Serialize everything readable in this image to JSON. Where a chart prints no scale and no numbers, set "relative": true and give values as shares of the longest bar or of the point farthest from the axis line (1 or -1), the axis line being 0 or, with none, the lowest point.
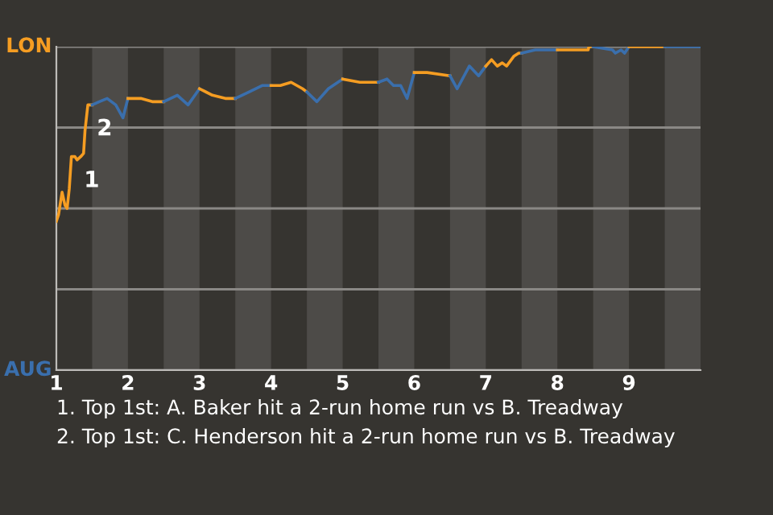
{
  "chart_data": {
    "type": "line",
    "relative": true,
    "xlim": [
      1,
      10
    ],
    "xticks": [
      1,
      2,
      3,
      4,
      5,
      6,
      7,
      8,
      9
    ],
    "grid": "y",
    "series": [
      {
        "color": "#f59d22",
        "x": [
          1,
          1.03,
          1.08,
          1.12,
          1.15,
          1.18,
          1.21,
          1.26,
          1.29,
          1.34,
          1.38,
          1.4,
          1.44,
          1.5
        ],
        "values": [
          0.46,
          0.48,
          0.55,
          0.51,
          0.5,
          0.56,
          0.66,
          0.66,
          0.65,
          0.66,
          0.67,
          0.74,
          0.82,
          0.82
        ]
      },
      {
        "color": "#3a6fad",
        "x": [
          1.5,
          1.6,
          1.71,
          1.83,
          1.93,
          2
        ],
        "values": [
          0.82,
          0.83,
          0.84,
          0.82,
          0.78,
          0.84
        ]
      },
      {
        "color": "#f59d22",
        "x": [
          2,
          2.18,
          2.34,
          2.5
        ],
        "values": [
          0.84,
          0.84,
          0.83,
          0.83
        ]
      },
      {
        "color": "#3a6fad",
        "x": [
          2.5,
          2.69,
          2.84,
          3
        ],
        "values": [
          0.83,
          0.85,
          0.82,
          0.87
        ]
      },
      {
        "color": "#f59d22",
        "x": [
          3,
          3.18,
          3.36,
          3.5
        ],
        "values": [
          0.87,
          0.85,
          0.84,
          0.84
        ]
      },
      {
        "color": "#3a6fad",
        "x": [
          3.5,
          3.69,
          3.88,
          4
        ],
        "values": [
          0.84,
          0.86,
          0.88,
          0.88
        ]
      },
      {
        "color": "#f59d22",
        "x": [
          4,
          4.13,
          4.28,
          4.44,
          4.5
        ],
        "values": [
          0.88,
          0.88,
          0.89,
          0.87,
          0.86
        ]
      },
      {
        "color": "#3a6fad",
        "x": [
          4.5,
          4.64,
          4.8,
          5
        ],
        "values": [
          0.86,
          0.83,
          0.87,
          0.9
        ]
      },
      {
        "color": "#f59d22",
        "x": [
          5,
          5.24,
          5.5
        ],
        "values": [
          0.9,
          0.89,
          0.89
        ]
      },
      {
        "color": "#3a6fad",
        "x": [
          5.5,
          5.62,
          5.71,
          5.81,
          5.9,
          6
        ],
        "values": [
          0.89,
          0.9,
          0.88,
          0.88,
          0.84,
          0.92
        ]
      },
      {
        "color": "#f59d22",
        "x": [
          6,
          6.18,
          6.5
        ],
        "values": [
          0.92,
          0.92,
          0.91
        ]
      },
      {
        "color": "#3a6fad",
        "x": [
          6.5,
          6.6,
          6.77,
          6.9,
          7
        ],
        "values": [
          0.91,
          0.87,
          0.94,
          0.91,
          0.94
        ]
      },
      {
        "color": "#f59d22",
        "x": [
          7,
          7.08,
          7.16,
          7.23,
          7.29,
          7.39,
          7.46,
          7.5
        ],
        "values": [
          0.94,
          0.96,
          0.94,
          0.95,
          0.94,
          0.97,
          0.98,
          0.98
        ]
      },
      {
        "color": "#3a6fad",
        "x": [
          7.5,
          7.69,
          8
        ],
        "values": [
          0.98,
          0.99,
          0.99
        ]
      },
      {
        "color": "#f59d22",
        "x": [
          8,
          8.43,
          8.44,
          8.5
        ],
        "values": [
          0.99,
          0.99,
          1.0,
          1.0
        ]
      },
      {
        "color": "#3a6fad",
        "x": [
          8.5,
          8.77,
          8.81,
          8.89,
          8.94,
          9
        ],
        "values": [
          1.0,
          0.99,
          0.98,
          0.99,
          0.98,
          1.0
        ]
      },
      {
        "color": "#f59d22",
        "x": [
          9,
          9.5
        ],
        "values": [
          1.0,
          1.0
        ]
      },
      {
        "color": "#3a6fad",
        "x": [
          9.5,
          10
        ],
        "values": [
          1.0,
          1.0
        ]
      }
    ],
    "bands": [
      {
        "axis": "x",
        "from": 1.5,
        "to": 2,
        "color": "#4d4b48"
      },
      {
        "axis": "x",
        "from": 2.5,
        "to": 3,
        "color": "#4d4b48"
      },
      {
        "axis": "x",
        "from": 3.5,
        "to": 4,
        "color": "#4d4b48"
      },
      {
        "axis": "x",
        "from": 4.5,
        "to": 5,
        "color": "#4d4b48"
      },
      {
        "axis": "x",
        "from": 5.5,
        "to": 6,
        "color": "#4d4b48"
      },
      {
        "axis": "x",
        "from": 6.5,
        "to": 7,
        "color": "#4d4b48"
      },
      {
        "axis": "x",
        "from": 7.5,
        "to": 8,
        "color": "#4d4b48"
      },
      {
        "axis": "x",
        "from": 8.5,
        "to": 9,
        "color": "#4d4b48"
      },
      {
        "axis": "x",
        "from": 9.5,
        "to": 10,
        "color": "#4d4b48"
      }
    ],
    "annotations": [
      "LON",
      "AUG",
      {
        "text": "1",
        "x": 1.26,
        "y": 0.66
      },
      {
        "text": "2",
        "x": 1.44,
        "y": 0.82
      },
      "1. Top 1st: A. Baker hit a 2-run home run vs B. Treadway",
      "2. Top 1st: C. Henderson hit a 2-run home run vs B. Treadway"
    ]
  }
}
